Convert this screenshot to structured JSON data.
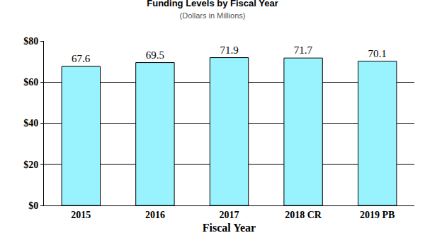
{
  "chart_data": {
    "type": "bar",
    "title": "Funding Levels by Fiscal Year",
    "subtitle": "(Dollars in Millions)",
    "x_label": "Fiscal Year",
    "categories": [
      "2015",
      "2016",
      "2017",
      "2018 CR",
      "2019 PB"
    ],
    "values": [
      67.6,
      69.5,
      71.9,
      71.7,
      70.1
    ],
    "color": "#99f3ff",
    "ylim": [
      0,
      80
    ],
    "yticks": [
      {
        "value": 0,
        "label": "$0"
      },
      {
        "value": 20,
        "label": "$20"
      },
      {
        "value": 40,
        "label": "$40"
      },
      {
        "value": 60,
        "label": "$60"
      },
      {
        "value": 80,
        "label": "$80"
      }
    ],
    "grid": true,
    "data_labels": true
  }
}
